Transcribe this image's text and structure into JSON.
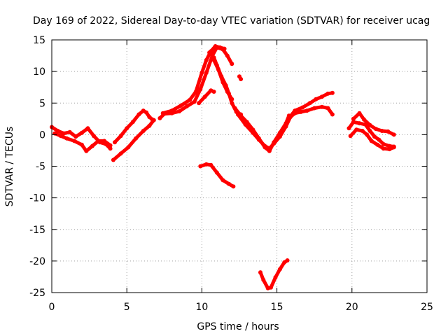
{
  "chart_data": {
    "type": "scatter",
    "title": "Day 169 of 2022, Sidereal Day-to-day VTEC variation (SDTVAR) for receiver ucag",
    "xlabel": "GPS time / hours",
    "ylabel": "SDTVAR / TECUs",
    "xlim": [
      0,
      25
    ],
    "ylim": [
      -25,
      15
    ],
    "xticks": [
      0,
      5,
      10,
      15,
      20,
      25
    ],
    "yticks": [
      15,
      10,
      5,
      0,
      -5,
      -10,
      -15,
      -20,
      -25
    ],
    "grid": true,
    "series": [
      {
        "name": "SDTVAR",
        "color": "#ff0000",
        "segments": [
          [
            [
              0.0,
              1.2
            ],
            [
              0.4,
              0.6
            ],
            [
              0.8,
              0.2
            ],
            [
              1.2,
              0.4
            ],
            [
              1.6,
              -0.3
            ],
            [
              2.0,
              0.3
            ],
            [
              2.4,
              1.0
            ],
            [
              2.8,
              -0.2
            ],
            [
              3.2,
              -1.2
            ],
            [
              3.6,
              -1.5
            ],
            [
              3.9,
              -2.2
            ]
          ],
          [
            [
              0.2,
              0.2
            ],
            [
              0.6,
              -0.2
            ],
            [
              1.0,
              -0.6
            ],
            [
              1.5,
              -1.0
            ],
            [
              2.0,
              -1.6
            ],
            [
              2.3,
              -2.6
            ],
            [
              2.7,
              -1.8
            ],
            [
              3.1,
              -1.0
            ],
            [
              3.5,
              -1.0
            ],
            [
              3.9,
              -1.7
            ]
          ],
          [
            [
              4.2,
              -1.2
            ],
            [
              4.6,
              -0.2
            ],
            [
              5.0,
              1.0
            ],
            [
              5.4,
              2.0
            ],
            [
              5.8,
              3.2
            ],
            [
              6.1,
              3.8
            ],
            [
              6.3,
              3.5
            ],
            [
              6.5,
              2.8
            ],
            [
              6.7,
              2.4
            ]
          ],
          [
            [
              4.1,
              -4.0
            ],
            [
              4.6,
              -3.0
            ],
            [
              5.1,
              -2.0
            ],
            [
              5.6,
              -0.6
            ],
            [
              6.1,
              0.6
            ],
            [
              6.5,
              1.4
            ],
            [
              6.8,
              2.3
            ]
          ],
          [
            [
              7.2,
              2.6
            ],
            [
              7.5,
              3.3
            ],
            [
              8.0,
              3.4
            ],
            [
              8.5,
              3.7
            ],
            [
              9.0,
              4.5
            ],
            [
              9.5,
              5.2
            ],
            [
              9.9,
              7.2
            ],
            [
              10.3,
              9.8
            ],
            [
              10.7,
              12.5
            ],
            [
              11.0,
              13.8
            ],
            [
              11.4,
              13.5
            ],
            [
              11.7,
              12.5
            ],
            [
              12.0,
              11.2
            ]
          ],
          [
            [
              7.4,
              3.4
            ],
            [
              8.0,
              3.8
            ],
            [
              8.6,
              4.6
            ],
            [
              9.2,
              5.5
            ],
            [
              9.6,
              6.8
            ],
            [
              10.0,
              9.8
            ],
            [
              10.3,
              11.8
            ],
            [
              10.6,
              13.2
            ],
            [
              10.9,
              14.0
            ],
            [
              11.2,
              13.8
            ],
            [
              11.5,
              13.6
            ]
          ],
          [
            [
              9.8,
              5.0
            ],
            [
              10.2,
              6.0
            ],
            [
              10.6,
              7.0
            ],
            [
              10.8,
              6.8
            ]
          ],
          [
            [
              10.5,
              13.0
            ],
            [
              10.8,
              12.2
            ],
            [
              11.0,
              11.0
            ],
            [
              11.3,
              9.2
            ],
            [
              11.6,
              7.8
            ],
            [
              11.8,
              6.5
            ],
            [
              12.0,
              5.0
            ],
            [
              12.3,
              3.6
            ],
            [
              12.6,
              3.2
            ]
          ],
          [
            [
              10.8,
              11.8
            ],
            [
              11.1,
              10.3
            ],
            [
              11.4,
              8.3
            ],
            [
              11.7,
              6.8
            ],
            [
              12.0,
              5.6
            ]
          ],
          [
            [
              12.5,
              9.2
            ],
            [
              12.6,
              8.8
            ]
          ],
          [
            [
              12.2,
              4.2
            ],
            [
              12.6,
              3.0
            ],
            [
              13.0,
              2.0
            ],
            [
              13.4,
              0.8
            ],
            [
              13.8,
              -0.6
            ],
            [
              14.2,
              -2.0
            ],
            [
              14.5,
              -2.6
            ],
            [
              14.8,
              -1.2
            ],
            [
              15.2,
              0.3
            ],
            [
              15.6,
              1.8
            ],
            [
              15.8,
              3.0
            ]
          ],
          [
            [
              12.4,
              3.2
            ],
            [
              12.9,
              1.6
            ],
            [
              13.4,
              0.3
            ],
            [
              13.8,
              -0.8
            ],
            [
              14.2,
              -1.8
            ],
            [
              14.5,
              -2.2
            ],
            [
              14.8,
              -1.4
            ],
            [
              15.2,
              -0.3
            ],
            [
              15.6,
              1.3
            ],
            [
              15.9,
              2.8
            ],
            [
              16.2,
              3.4
            ],
            [
              16.6,
              3.6
            ],
            [
              17.0,
              3.8
            ],
            [
              17.5,
              4.2
            ],
            [
              18.0,
              4.4
            ],
            [
              18.4,
              4.2
            ],
            [
              18.7,
              3.2
            ]
          ],
          [
            [
              15.8,
              2.6
            ],
            [
              16.2,
              3.8
            ],
            [
              16.7,
              4.3
            ],
            [
              17.2,
              5.0
            ],
            [
              17.6,
              5.6
            ],
            [
              18.0,
              6.0
            ],
            [
              18.4,
              6.5
            ],
            [
              18.7,
              6.6
            ]
          ],
          [
            [
              9.9,
              -5.0
            ],
            [
              10.3,
              -4.7
            ],
            [
              10.6,
              -4.8
            ],
            [
              11.0,
              -6.0
            ],
            [
              11.4,
              -7.2
            ],
            [
              11.8,
              -7.8
            ],
            [
              12.1,
              -8.2
            ]
          ],
          [
            [
              13.9,
              -21.8
            ],
            [
              14.1,
              -23.0
            ],
            [
              14.4,
              -24.3
            ],
            [
              14.6,
              -24.2
            ],
            [
              14.9,
              -22.6
            ],
            [
              15.2,
              -21.3
            ],
            [
              15.5,
              -20.2
            ],
            [
              15.7,
              -19.9
            ]
          ],
          [
            [
              19.8,
              1.0
            ],
            [
              20.1,
              2.0
            ],
            [
              20.5,
              1.8
            ],
            [
              20.9,
              1.6
            ],
            [
              21.2,
              0.6
            ],
            [
              21.5,
              -0.3
            ],
            [
              21.8,
              -0.8
            ],
            [
              22.1,
              -1.5
            ],
            [
              22.5,
              -1.8
            ],
            [
              22.8,
              -1.9
            ]
          ],
          [
            [
              19.9,
              -0.2
            ],
            [
              20.3,
              0.8
            ],
            [
              20.7,
              0.6
            ],
            [
              21.0,
              0.0
            ],
            [
              21.3,
              -1.0
            ],
            [
              21.7,
              -1.6
            ],
            [
              22.1,
              -2.2
            ],
            [
              22.5,
              -2.3
            ],
            [
              22.8,
              -2.0
            ]
          ],
          [
            [
              20.1,
              2.5
            ],
            [
              20.5,
              3.4
            ],
            [
              20.8,
              2.4
            ],
            [
              21.2,
              1.5
            ],
            [
              21.6,
              0.9
            ],
            [
              22.0,
              0.6
            ],
            [
              22.4,
              0.5
            ],
            [
              22.8,
              0.0
            ]
          ]
        ]
      }
    ]
  }
}
